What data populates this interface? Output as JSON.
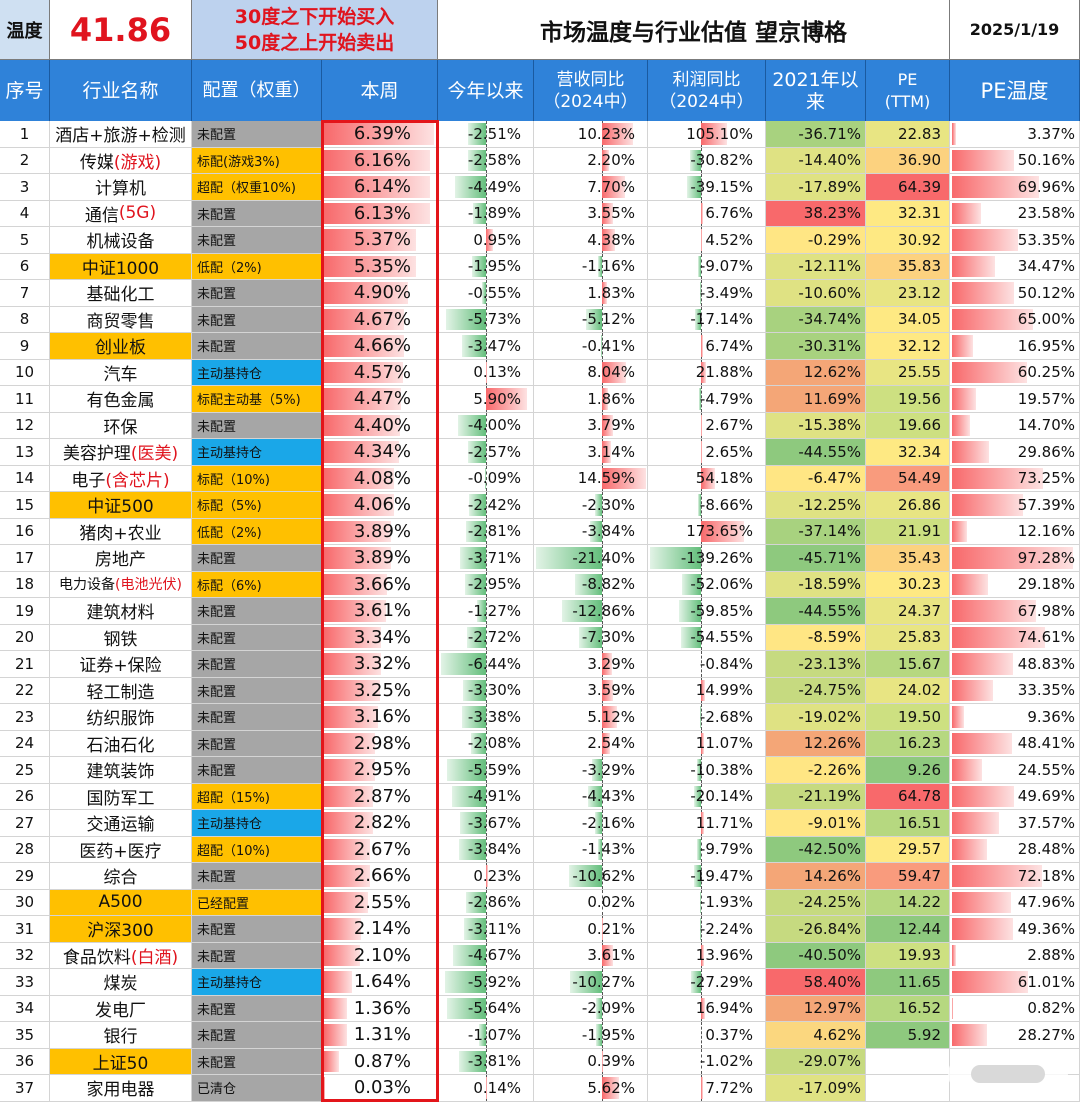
{
  "top": {
    "label": "温度",
    "value": "41.86",
    "rule_buy": "30度之下开始买入",
    "rule_sell": "50度之上开始卖出",
    "title": "市场温度与行业估值 望京博格",
    "date": "2025/1/19"
  },
  "headers": {
    "num": "序号",
    "name": "行业名称",
    "config": "配置（权重）",
    "week": "本周",
    "ytd": "今年以来",
    "rev": "营收同比\n（2024中）",
    "profit": "利润同比\n（2024中）",
    "since2021": "2021年以\n来",
    "pe": "PE\n(TTM)",
    "pe_temp": "PE温度"
  },
  "colors": {
    "header": "#2f82d9",
    "orange": "#ffc000",
    "blue": "#1aa7e8",
    "gray": "#a6a6a6",
    "red_text": "#e0141e",
    "frame": "#e3151a"
  },
  "rows": [
    {
      "num": "1",
      "name": "酒店+旅游+检测",
      "cfg": "未配置",
      "ct": "gray",
      "wk": "6.39%",
      "ytd": "-2.51%",
      "rev": "10.23%",
      "pro": "105.10%",
      "y21": "-36.71%",
      "pe": "22.83",
      "pt": "3.37%"
    },
    {
      "num": "2",
      "name": "传媒",
      "name_hl": "(游戏)",
      "cfg": "标配(游戏3%)",
      "ct": "orange",
      "wk": "6.16%",
      "ytd": "-2.58%",
      "rev": "2.20%",
      "pro": "-30.82%",
      "y21": "-14.40%",
      "pe": "36.90",
      "pt": "50.16%"
    },
    {
      "num": "3",
      "name": "计算机",
      "cfg": "超配（权重10%)",
      "ct": "orange",
      "wk": "6.14%",
      "ytd": "-4.49%",
      "rev": "7.70%",
      "pro": "-39.15%",
      "y21": "-17.89%",
      "pe": "64.39",
      "pt": "69.96%"
    },
    {
      "num": "4",
      "name": "通信",
      "name_hl": "(5G)",
      "cfg": "未配置",
      "ct": "gray",
      "wk": "6.13%",
      "ytd": "-1.89%",
      "rev": "3.55%",
      "pro": "6.76%",
      "y21": "38.23%",
      "pe": "32.31",
      "pt": "23.58%"
    },
    {
      "num": "5",
      "name": "机械设备",
      "cfg": "未配置",
      "ct": "gray",
      "wk": "5.37%",
      "ytd": "0.95%",
      "rev": "4.38%",
      "pro": "4.52%",
      "y21": "-0.29%",
      "pe": "30.92",
      "pt": "53.35%"
    },
    {
      "num": "6",
      "name": "中证1000",
      "hl": true,
      "cfg": "低配（2%)",
      "ct": "orange",
      "wk": "5.35%",
      "ytd": "-1.95%",
      "rev": "-1.16%",
      "pro": "-9.07%",
      "y21": "-12.11%",
      "pe": "35.83",
      "pt": "34.47%"
    },
    {
      "num": "7",
      "name": "基础化工",
      "cfg": "未配置",
      "ct": "gray",
      "wk": "4.90%",
      "ytd": "-0.55%",
      "rev": "1.83%",
      "pro": "-3.49%",
      "y21": "-10.60%",
      "pe": "23.12",
      "pt": "50.12%"
    },
    {
      "num": "8",
      "name": "商贸零售",
      "cfg": "未配置",
      "ct": "gray",
      "wk": "4.67%",
      "ytd": "-5.73%",
      "rev": "-5.12%",
      "pro": "-17.14%",
      "y21": "-34.74%",
      "pe": "34.05",
      "pt": "65.00%"
    },
    {
      "num": "9",
      "name": "创业板",
      "hl": true,
      "cfg": "未配置",
      "ct": "gray",
      "wk": "4.66%",
      "ytd": "-3.47%",
      "rev": "-0.41%",
      "pro": "6.74%",
      "y21": "-30.31%",
      "pe": "32.12",
      "pt": "16.95%"
    },
    {
      "num": "10",
      "name": "汽车",
      "cfg": "主动基持仓",
      "ct": "blue",
      "wk": "4.57%",
      "ytd": "0.13%",
      "rev": "8.04%",
      "pro": "21.88%",
      "y21": "12.62%",
      "pe": "25.55",
      "pt": "60.25%"
    },
    {
      "num": "11",
      "name": "有色金属",
      "cfg": "标配主动基（5%)",
      "ct": "orange",
      "wk": "4.47%",
      "ytd": "5.90%",
      "rev": "1.86%",
      "pro": "-4.79%",
      "y21": "11.69%",
      "pe": "19.56",
      "pt": "19.57%"
    },
    {
      "num": "12",
      "name": "环保",
      "cfg": "未配置",
      "ct": "gray",
      "wk": "4.40%",
      "ytd": "-4.00%",
      "rev": "3.79%",
      "pro": "2.67%",
      "y21": "-15.38%",
      "pe": "19.66",
      "pt": "14.70%"
    },
    {
      "num": "13",
      "name": "美容护理",
      "name_hl": "(医美)",
      "cfg": "主动基持仓",
      "ct": "blue",
      "wk": "4.34%",
      "ytd": "-2.57%",
      "rev": "3.14%",
      "pro": "2.65%",
      "y21": "-44.55%",
      "pe": "32.34",
      "pt": "29.86%"
    },
    {
      "num": "14",
      "name": "电子",
      "name_hl": "(含芯片)",
      "cfg": "标配（10%)",
      "ct": "orange",
      "wk": "4.08%",
      "ytd": "-0.09%",
      "rev": "14.59%",
      "pro": "54.18%",
      "y21": "-6.47%",
      "pe": "54.49",
      "pt": "73.25%"
    },
    {
      "num": "15",
      "name": "中证500",
      "hl": true,
      "cfg": "标配（5%)",
      "ct": "orange",
      "wk": "4.06%",
      "ytd": "-2.42%",
      "rev": "-2.30%",
      "pro": "-8.66%",
      "y21": "-12.25%",
      "pe": "26.86",
      "pt": "57.39%"
    },
    {
      "num": "16",
      "name": "猪肉+农业",
      "cfg": "低配（2%)",
      "ct": "orange",
      "wk": "3.89%",
      "ytd": "-2.81%",
      "rev": "-3.84%",
      "pro": "173.65%",
      "y21": "-37.14%",
      "pe": "21.91",
      "pt": "12.16%"
    },
    {
      "num": "17",
      "name": "房地产",
      "cfg": "未配置",
      "ct": "gray",
      "wk": "3.89%",
      "ytd": "-3.71%",
      "rev": "-21.40%",
      "pro": "-139.26%",
      "y21": "-45.71%",
      "pe": "35.43",
      "pt": "97.28%"
    },
    {
      "num": "18",
      "name": "电力设备",
      "name_hl": "(电池光伏)",
      "small": true,
      "cfg": "标配（6%)",
      "ct": "orange",
      "wk": "3.66%",
      "ytd": "-2.95%",
      "rev": "-8.82%",
      "pro": "-52.06%",
      "y21": "-18.59%",
      "pe": "30.23",
      "pt": "29.18%"
    },
    {
      "num": "19",
      "name": "建筑材料",
      "cfg": "未配置",
      "ct": "gray",
      "wk": "3.61%",
      "ytd": "-1.27%",
      "rev": "-12.86%",
      "pro": "-59.85%",
      "y21": "-44.55%",
      "pe": "24.37",
      "pt": "67.98%"
    },
    {
      "num": "20",
      "name": "钢铁",
      "cfg": "未配置",
      "ct": "gray",
      "wk": "3.34%",
      "ytd": "-2.72%",
      "rev": "-7.30%",
      "pro": "-54.55%",
      "y21": "-8.59%",
      "pe": "25.83",
      "pt": "74.61%"
    },
    {
      "num": "21",
      "name": "证券+保险",
      "cfg": "未配置",
      "ct": "gray",
      "wk": "3.32%",
      "ytd": "-6.44%",
      "rev": "3.29%",
      "pro": "-0.84%",
      "y21": "-23.13%",
      "pe": "15.67",
      "pt": "48.83%"
    },
    {
      "num": "22",
      "name": "轻工制造",
      "cfg": "未配置",
      "ct": "gray",
      "wk": "3.25%",
      "ytd": "-3.30%",
      "rev": "3.59%",
      "pro": "14.99%",
      "y21": "-24.75%",
      "pe": "24.02",
      "pt": "33.35%"
    },
    {
      "num": "23",
      "name": "纺织服饰",
      "cfg": "未配置",
      "ct": "gray",
      "wk": "3.16%",
      "ytd": "-3.38%",
      "rev": "5.12%",
      "pro": "-2.68%",
      "y21": "-19.02%",
      "pe": "19.50",
      "pt": "9.36%"
    },
    {
      "num": "24",
      "name": "石油石化",
      "cfg": "未配置",
      "ct": "gray",
      "wk": "2.98%",
      "ytd": "-2.08%",
      "rev": "2.54%",
      "pro": "11.07%",
      "y21": "12.26%",
      "pe": "16.23",
      "pt": "48.41%"
    },
    {
      "num": "25",
      "name": "建筑装饰",
      "cfg": "未配置",
      "ct": "gray",
      "wk": "2.95%",
      "ytd": "-5.59%",
      "rev": "-3.29%",
      "pro": "-10.38%",
      "y21": "-2.26%",
      "pe": "9.26",
      "pt": "24.55%"
    },
    {
      "num": "26",
      "name": "国防军工",
      "cfg": "超配（15%)",
      "ct": "orange",
      "wk": "2.87%",
      "ytd": "-4.91%",
      "rev": "-4.43%",
      "pro": "-20.14%",
      "y21": "-21.19%",
      "pe": "64.78",
      "pt": "49.69%"
    },
    {
      "num": "27",
      "name": "交通运输",
      "cfg": "主动基持仓",
      "ct": "blue",
      "wk": "2.82%",
      "ytd": "-3.67%",
      "rev": "-2.16%",
      "pro": "11.71%",
      "y21": "-9.01%",
      "pe": "16.51",
      "pt": "37.57%"
    },
    {
      "num": "28",
      "name": "医药+医疗",
      "cfg": "超配（10%)",
      "ct": "orange",
      "wk": "2.67%",
      "ytd": "-3.84%",
      "rev": "-1.43%",
      "pro": "-9.79%",
      "y21": "-42.50%",
      "pe": "29.57",
      "pt": "28.48%"
    },
    {
      "num": "29",
      "name": "综合",
      "cfg": "未配置",
      "ct": "gray",
      "wk": "2.66%",
      "ytd": "0.23%",
      "rev": "-10.62%",
      "pro": "-19.47%",
      "y21": "14.26%",
      "pe": "59.47",
      "pt": "72.18%"
    },
    {
      "num": "30",
      "name": "A500",
      "hl": true,
      "cfg": "已经配置",
      "ct": "orange",
      "wk": "2.55%",
      "ytd": "-2.86%",
      "rev": "0.02%",
      "pro": "-1.93%",
      "y21": "-24.25%",
      "pe": "14.22",
      "pt": "47.96%"
    },
    {
      "num": "31",
      "name": "沪深300",
      "hl": true,
      "cfg": "未配置",
      "ct": "gray",
      "wk": "2.14%",
      "ytd": "-3.11%",
      "rev": "0.21%",
      "pro": "-2.24%",
      "y21": "-26.84%",
      "pe": "12.44",
      "pt": "49.36%"
    },
    {
      "num": "32",
      "name": "食品饮料",
      "name_hl": "(白酒)",
      "cfg": "未配置",
      "ct": "gray",
      "wk": "2.10%",
      "ytd": "-4.67%",
      "rev": "3.61%",
      "pro": "13.96%",
      "y21": "-40.50%",
      "pe": "19.93",
      "pt": "2.88%"
    },
    {
      "num": "33",
      "name": "煤炭",
      "cfg": "主动基持仓",
      "ct": "blue",
      "wk": "1.64%",
      "ytd": "-5.92%",
      "rev": "-10.27%",
      "pro": "-27.29%",
      "y21": "58.40%",
      "pe": "11.65",
      "pt": "61.01%"
    },
    {
      "num": "34",
      "name": "发电厂",
      "cfg": "未配置",
      "ct": "gray",
      "wk": "1.36%",
      "ytd": "-5.64%",
      "rev": "-2.09%",
      "pro": "16.94%",
      "y21": "12.97%",
      "pe": "16.52",
      "pt": "0.82%"
    },
    {
      "num": "35",
      "name": "银行",
      "cfg": "未配置",
      "ct": "gray",
      "wk": "1.31%",
      "ytd": "-1.07%",
      "rev": "-1.95%",
      "pro": "0.37%",
      "y21": "4.62%",
      "pe": "5.92",
      "pt": "28.27%"
    },
    {
      "num": "36",
      "name": "上证50",
      "hl": true,
      "cfg": "未配置",
      "ct": "gray",
      "wk": "0.87%",
      "ytd": "-3.81%",
      "rev": "0.39%",
      "pro": "-1.02%",
      "y21": "-29.07%",
      "pe": "",
      "pt": ""
    },
    {
      "num": "37",
      "name": "家用电器",
      "cfg": "已清仓",
      "ct": "gray",
      "wk": "0.03%",
      "ytd": "0.14%",
      "rev": "5.62%",
      "pro": "7.72%",
      "y21": "-17.09%",
      "pe": "",
      "pt": ""
    }
  ]
}
